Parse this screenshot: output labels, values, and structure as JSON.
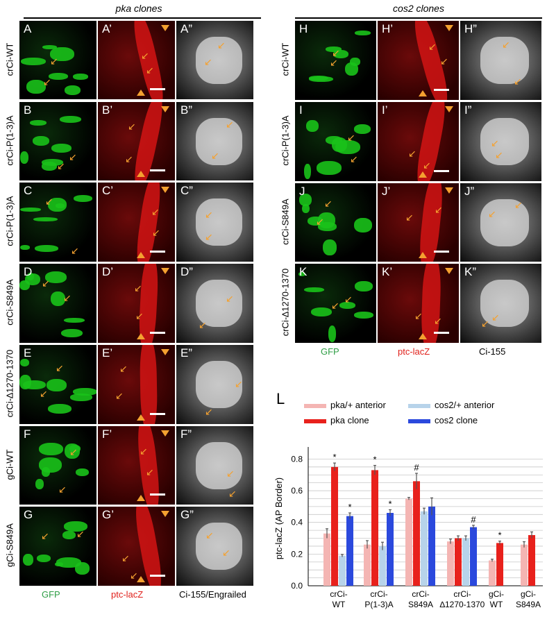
{
  "left_header": "pka clones",
  "right_header": "cos2 clones",
  "left_rows": [
    {
      "label": "crCi-WT",
      "panels": [
        "A",
        "A’",
        "A”"
      ]
    },
    {
      "label": "crCi-P(1-3)A",
      "panels": [
        "B",
        "B’",
        "B”"
      ]
    },
    {
      "label": "crCi-P(1-3)A",
      "panels": [
        "C",
        "C’",
        "C”"
      ]
    },
    {
      "label": "crCi-S849A",
      "panels": [
        "D",
        "D’",
        "D”"
      ]
    },
    {
      "label": "crCi-∆1270-1370",
      "panels": [
        "E",
        "E’",
        "E”"
      ]
    },
    {
      "label": "gCi-WT",
      "panels": [
        "F",
        "F’",
        "F”"
      ]
    },
    {
      "label": "gCi-S849A",
      "panels": [
        "G",
        "G’",
        "G”"
      ]
    }
  ],
  "right_rows": [
    {
      "label": "crCi-WT",
      "panels": [
        "H",
        "H’",
        "H”"
      ]
    },
    {
      "label": "crCi-P(1-3)A",
      "panels": [
        "I",
        "I’",
        "I”"
      ]
    },
    {
      "label": "crCi-S849A",
      "panels": [
        "J",
        "J’",
        "J”"
      ]
    },
    {
      "label": "crCi-∆1270-1370",
      "panels": [
        "K",
        "K’",
        "K”"
      ]
    }
  ],
  "left_channels": {
    "gfp": "GFP",
    "lacz": "ptc-lacZ",
    "ci": "Ci-155/Engrailed"
  },
  "right_channels": {
    "gfp": "GFP",
    "lacz": "ptc-lacZ",
    "ci": "Ci-155"
  },
  "colors": {
    "gfp": "#2e9e45",
    "lacz": "#e0201b",
    "arrow": "#f4a130"
  },
  "chart_label": "L",
  "chart_data": {
    "type": "bar",
    "ylabel": "ptc-lacZ (AP Border)",
    "ylim": [
      0,
      0.85
    ],
    "yticks": [
      "0.0",
      "0.2",
      "0.4",
      "0.6",
      "0.8"
    ],
    "ytick_values": [
      0,
      0.2,
      0.4,
      0.6,
      0.8
    ],
    "grid": true,
    "legend_placement": "top",
    "legend": [
      {
        "name": "pka/+ anterior",
        "color": "#f4b5b3"
      },
      {
        "name": "cos2/+ anterior",
        "color": "#b7d3ea"
      },
      {
        "name": "pka clone",
        "color": "#e8211c"
      },
      {
        "name": "cos2 clone",
        "color": "#2b49dd"
      }
    ],
    "groups": [
      {
        "label1": "crCi-",
        "label2": "WT",
        "bars": [
          {
            "s": 0,
            "v": 0.33,
            "e": 0.03
          },
          {
            "s": 2,
            "v": 0.75,
            "e": 0.025,
            "mark": "*"
          },
          {
            "s": 1,
            "v": 0.19,
            "e": 0.008
          },
          {
            "s": 3,
            "v": 0.44,
            "e": 0.02,
            "mark": "*"
          }
        ]
      },
      {
        "label1": "crCi-",
        "label2": "P(1-3)A",
        "bars": [
          {
            "s": 0,
            "v": 0.26,
            "e": 0.025
          },
          {
            "s": 2,
            "v": 0.73,
            "e": 0.03,
            "mark": "*"
          },
          {
            "s": 1,
            "v": 0.25,
            "e": 0.025
          },
          {
            "s": 3,
            "v": 0.46,
            "e": 0.02,
            "mark": "*"
          }
        ]
      },
      {
        "label1": "crCi-",
        "label2": "S849A",
        "bars": [
          {
            "s": 0,
            "v": 0.55,
            "e": 0.008
          },
          {
            "s": 2,
            "v": 0.66,
            "e": 0.05,
            "mark": "#"
          },
          {
            "s": 1,
            "v": 0.47,
            "e": 0.02
          },
          {
            "s": 3,
            "v": 0.5,
            "e": 0.055
          }
        ]
      },
      {
        "label1": "crCi-",
        "label2": "∆1270-1370",
        "bars": [
          {
            "s": 0,
            "v": 0.28,
            "e": 0.015
          },
          {
            "s": 2,
            "v": 0.3,
            "e": 0.015
          },
          {
            "s": 1,
            "v": 0.3,
            "e": 0.015
          },
          {
            "s": 3,
            "v": 0.37,
            "e": 0.012,
            "mark": "#"
          }
        ]
      },
      {
        "label1": "gCi-",
        "label2": "WT",
        "bars": [
          {
            "s": 0,
            "v": 0.16,
            "e": 0.008
          },
          {
            "s": 2,
            "v": 0.27,
            "e": 0.012,
            "mark": "*"
          }
        ]
      },
      {
        "label1": "gCi-",
        "label2": "S849A",
        "bars": [
          {
            "s": 0,
            "v": 0.26,
            "e": 0.018
          },
          {
            "s": 2,
            "v": 0.32,
            "e": 0.02
          }
        ]
      }
    ]
  }
}
